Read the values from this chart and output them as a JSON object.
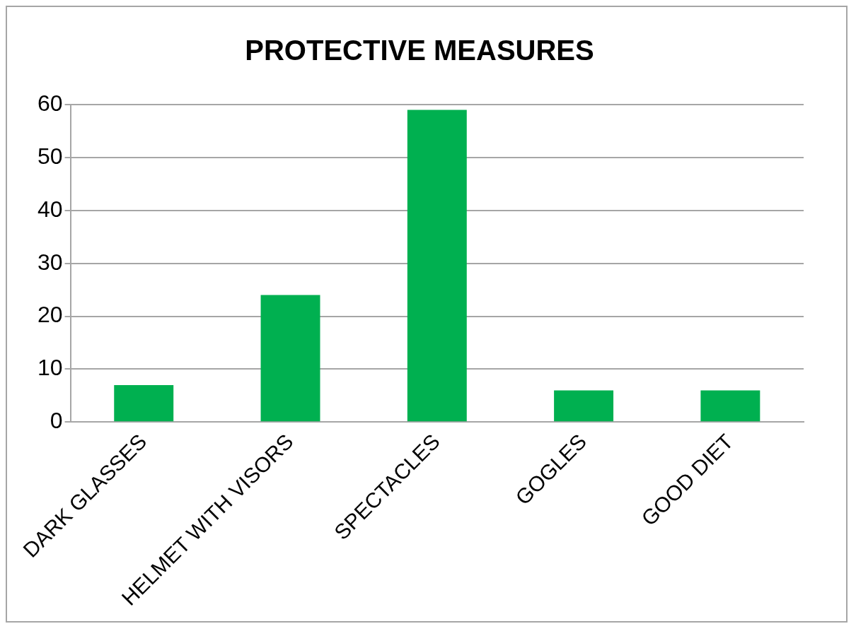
{
  "chart_data": {
    "type": "bar",
    "title": "PROTECTIVE MEASURES",
    "categories": [
      "DARK GLASSES",
      "HELMET WITH VISORS",
      "SPECTACLES",
      "GOGLES",
      "GOOD DIET"
    ],
    "values": [
      7,
      24,
      59,
      6,
      6
    ],
    "color": "#00b050",
    "ylim": [
      0,
      60
    ],
    "yticks": [
      0,
      10,
      20,
      30,
      40,
      50,
      60
    ],
    "grid": "y",
    "legend": false
  }
}
